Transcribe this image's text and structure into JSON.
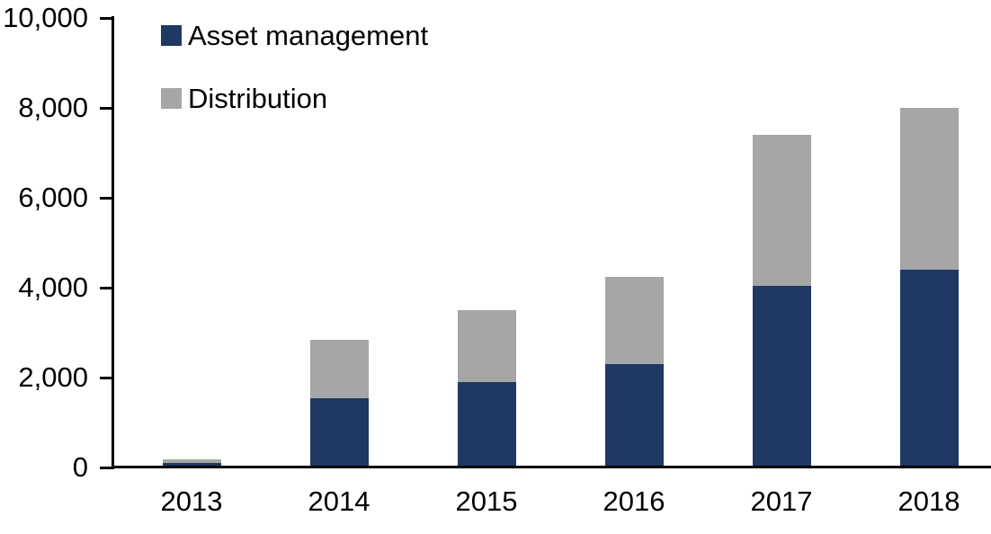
{
  "chart_data": {
    "type": "bar",
    "stacked": true,
    "title": "",
    "xlabel": "",
    "ylabel": "",
    "categories": [
      "2013",
      "2014",
      "2015",
      "2016",
      "2017",
      "2018"
    ],
    "series": [
      {
        "name": "Asset management",
        "color": "#1f3864",
        "values": [
          100,
          1550,
          1900,
          2300,
          4050,
          4400
        ]
      },
      {
        "name": "Distribution",
        "color": "#a6a6a6",
        "values": [
          90,
          1300,
          1600,
          1950,
          3350,
          3600
        ]
      }
    ],
    "totals": [
      190,
      2850,
      3500,
      4250,
      7400,
      8000
    ],
    "ylim": [
      0,
      10000
    ],
    "y_ticks": [
      {
        "value": 0,
        "label": "0"
      },
      {
        "value": 2000,
        "label": "2,000"
      },
      {
        "value": 4000,
        "label": "4,000"
      },
      {
        "value": 6000,
        "label": "6,000"
      },
      {
        "value": 8000,
        "label": "8,000"
      },
      {
        "value": 10000,
        "label": "10,000"
      }
    ],
    "grid": false,
    "legend_position": "top-left-inside",
    "axis_color": "#000000",
    "background_color": "#ffffff"
  }
}
